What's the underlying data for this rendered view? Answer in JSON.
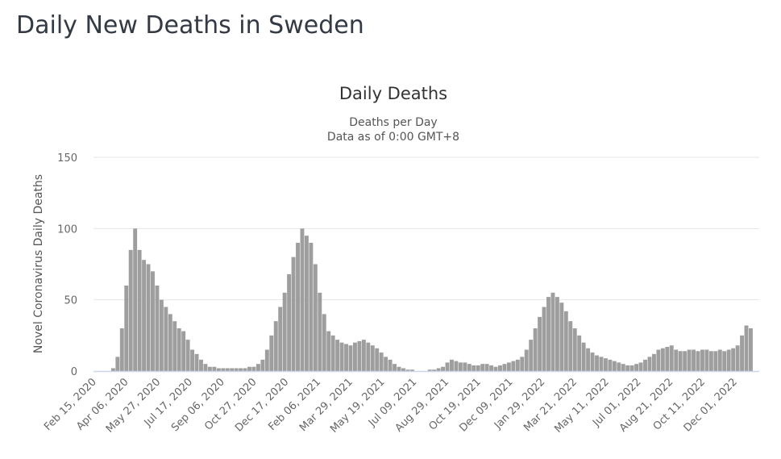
{
  "page": {
    "title": "Daily New Deaths in Sweden"
  },
  "chart_data": {
    "type": "bar",
    "title": "Daily Deaths",
    "subtitle": [
      "Deaths per Day",
      "Data as of 0:00 GMT+8"
    ],
    "xlabel": "",
    "ylabel": "Novel Coronavirus Daily Deaths",
    "ylim": [
      0,
      150
    ],
    "y_ticks": [
      0,
      50,
      100,
      150
    ],
    "grid": true,
    "legend": "none",
    "bar_color": "#9e9e9e",
    "x_tick_labels": [
      "Feb 15, 2020",
      "Apr 06, 2020",
      "May 27, 2020",
      "Jul 17, 2020",
      "Sep 06, 2020",
      "Oct 27, 2020",
      "Dec 17, 2020",
      "Feb 06, 2021",
      "Mar 29, 2021",
      "May 19, 2021",
      "Jul 09, 2021",
      "Aug 29, 2021",
      "Oct 19, 2021",
      "Dec 09, 2021",
      "Jan 29, 2022",
      "Mar 21, 2022",
      "May 11, 2022",
      "Jul 01, 2022",
      "Aug 21, 2022",
      "Oct 11, 2022",
      "Dec 01, 2022"
    ],
    "x": [
      "2020-03-09",
      "2020-03-16",
      "2020-03-23",
      "2020-03-30",
      "2020-04-06",
      "2020-04-13",
      "2020-04-20",
      "2020-04-27",
      "2020-05-04",
      "2020-05-11",
      "2020-05-18",
      "2020-05-25",
      "2020-06-01",
      "2020-06-08",
      "2020-06-15",
      "2020-06-22",
      "2020-06-29",
      "2020-07-06",
      "2020-07-13",
      "2020-07-20",
      "2020-07-27",
      "2020-08-03",
      "2020-08-10",
      "2020-08-17",
      "2020-08-24",
      "2020-08-31",
      "2020-09-07",
      "2020-09-14",
      "2020-09-21",
      "2020-09-28",
      "2020-10-05",
      "2020-10-12",
      "2020-10-19",
      "2020-10-26",
      "2020-11-02",
      "2020-11-09",
      "2020-11-16",
      "2020-11-23",
      "2020-11-30",
      "2020-12-07",
      "2020-12-14",
      "2020-12-21",
      "2020-12-28",
      "2021-01-04",
      "2021-01-11",
      "2021-01-18",
      "2021-01-25",
      "2021-02-01",
      "2021-02-08",
      "2021-02-15",
      "2021-02-22",
      "2021-03-01",
      "2021-03-08",
      "2021-03-15",
      "2021-03-22",
      "2021-03-29",
      "2021-04-05",
      "2021-04-12",
      "2021-04-19",
      "2021-04-26",
      "2021-05-03",
      "2021-05-10",
      "2021-05-17",
      "2021-05-24",
      "2021-05-31",
      "2021-06-07",
      "2021-06-14",
      "2021-06-21",
      "2021-06-28",
      "2021-07-05",
      "2021-07-12",
      "2021-07-19",
      "2021-07-26",
      "2021-08-02",
      "2021-08-09",
      "2021-08-16",
      "2021-08-23",
      "2021-08-30",
      "2021-09-06",
      "2021-09-13",
      "2021-09-20",
      "2021-09-27",
      "2021-10-04",
      "2021-10-11",
      "2021-10-18",
      "2021-10-25",
      "2021-11-01",
      "2021-11-08",
      "2021-11-15",
      "2021-11-22",
      "2021-11-29",
      "2021-12-06",
      "2021-12-13",
      "2021-12-20",
      "2021-12-27",
      "2022-01-03",
      "2022-01-10",
      "2022-01-17",
      "2022-01-24",
      "2022-01-31",
      "2022-02-07",
      "2022-02-14",
      "2022-02-21",
      "2022-02-28",
      "2022-03-07",
      "2022-03-14",
      "2022-03-21",
      "2022-03-28",
      "2022-04-04",
      "2022-04-11",
      "2022-04-18",
      "2022-04-25",
      "2022-05-02",
      "2022-05-09",
      "2022-05-16",
      "2022-05-23",
      "2022-05-30",
      "2022-06-06",
      "2022-06-13",
      "2022-06-20",
      "2022-06-27",
      "2022-07-04",
      "2022-07-11",
      "2022-07-18",
      "2022-07-25",
      "2022-08-01",
      "2022-08-08",
      "2022-08-15",
      "2022-08-22",
      "2022-08-29",
      "2022-09-05",
      "2022-09-12",
      "2022-09-19",
      "2022-09-26",
      "2022-10-03",
      "2022-10-10",
      "2022-10-17",
      "2022-10-24",
      "2022-10-31",
      "2022-11-07",
      "2022-11-14",
      "2022-11-21",
      "2022-11-28",
      "2022-12-05",
      "2022-12-12",
      "2022-12-19"
    ],
    "values": [
      2,
      10,
      30,
      60,
      85,
      100,
      85,
      78,
      75,
      70,
      60,
      50,
      45,
      40,
      35,
      30,
      28,
      22,
      15,
      12,
      8,
      5,
      3,
      3,
      2,
      2,
      2,
      2,
      2,
      2,
      2,
      3,
      3,
      5,
      8,
      15,
      25,
      35,
      45,
      55,
      68,
      80,
      90,
      100,
      95,
      90,
      75,
      55,
      40,
      28,
      25,
      22,
      20,
      19,
      18,
      20,
      21,
      22,
      20,
      18,
      16,
      13,
      10,
      8,
      5,
      3,
      2,
      1,
      1,
      0,
      0,
      0,
      1,
      1,
      2,
      3,
      6,
      8,
      7,
      6,
      6,
      5,
      4,
      4,
      5,
      5,
      4,
      3,
      4,
      5,
      6,
      7,
      8,
      10,
      15,
      22,
      30,
      38,
      45,
      52,
      55,
      52,
      48,
      42,
      35,
      30,
      25,
      20,
      16,
      13,
      11,
      10,
      9,
      8,
      7,
      6,
      5,
      4,
      4,
      5,
      6,
      8,
      10,
      12,
      15,
      16,
      17,
      18,
      15,
      14,
      14,
      15,
      15,
      14,
      15,
      15,
      14,
      14,
      15,
      14,
      15,
      16,
      18,
      25,
      32,
      30
    ]
  }
}
